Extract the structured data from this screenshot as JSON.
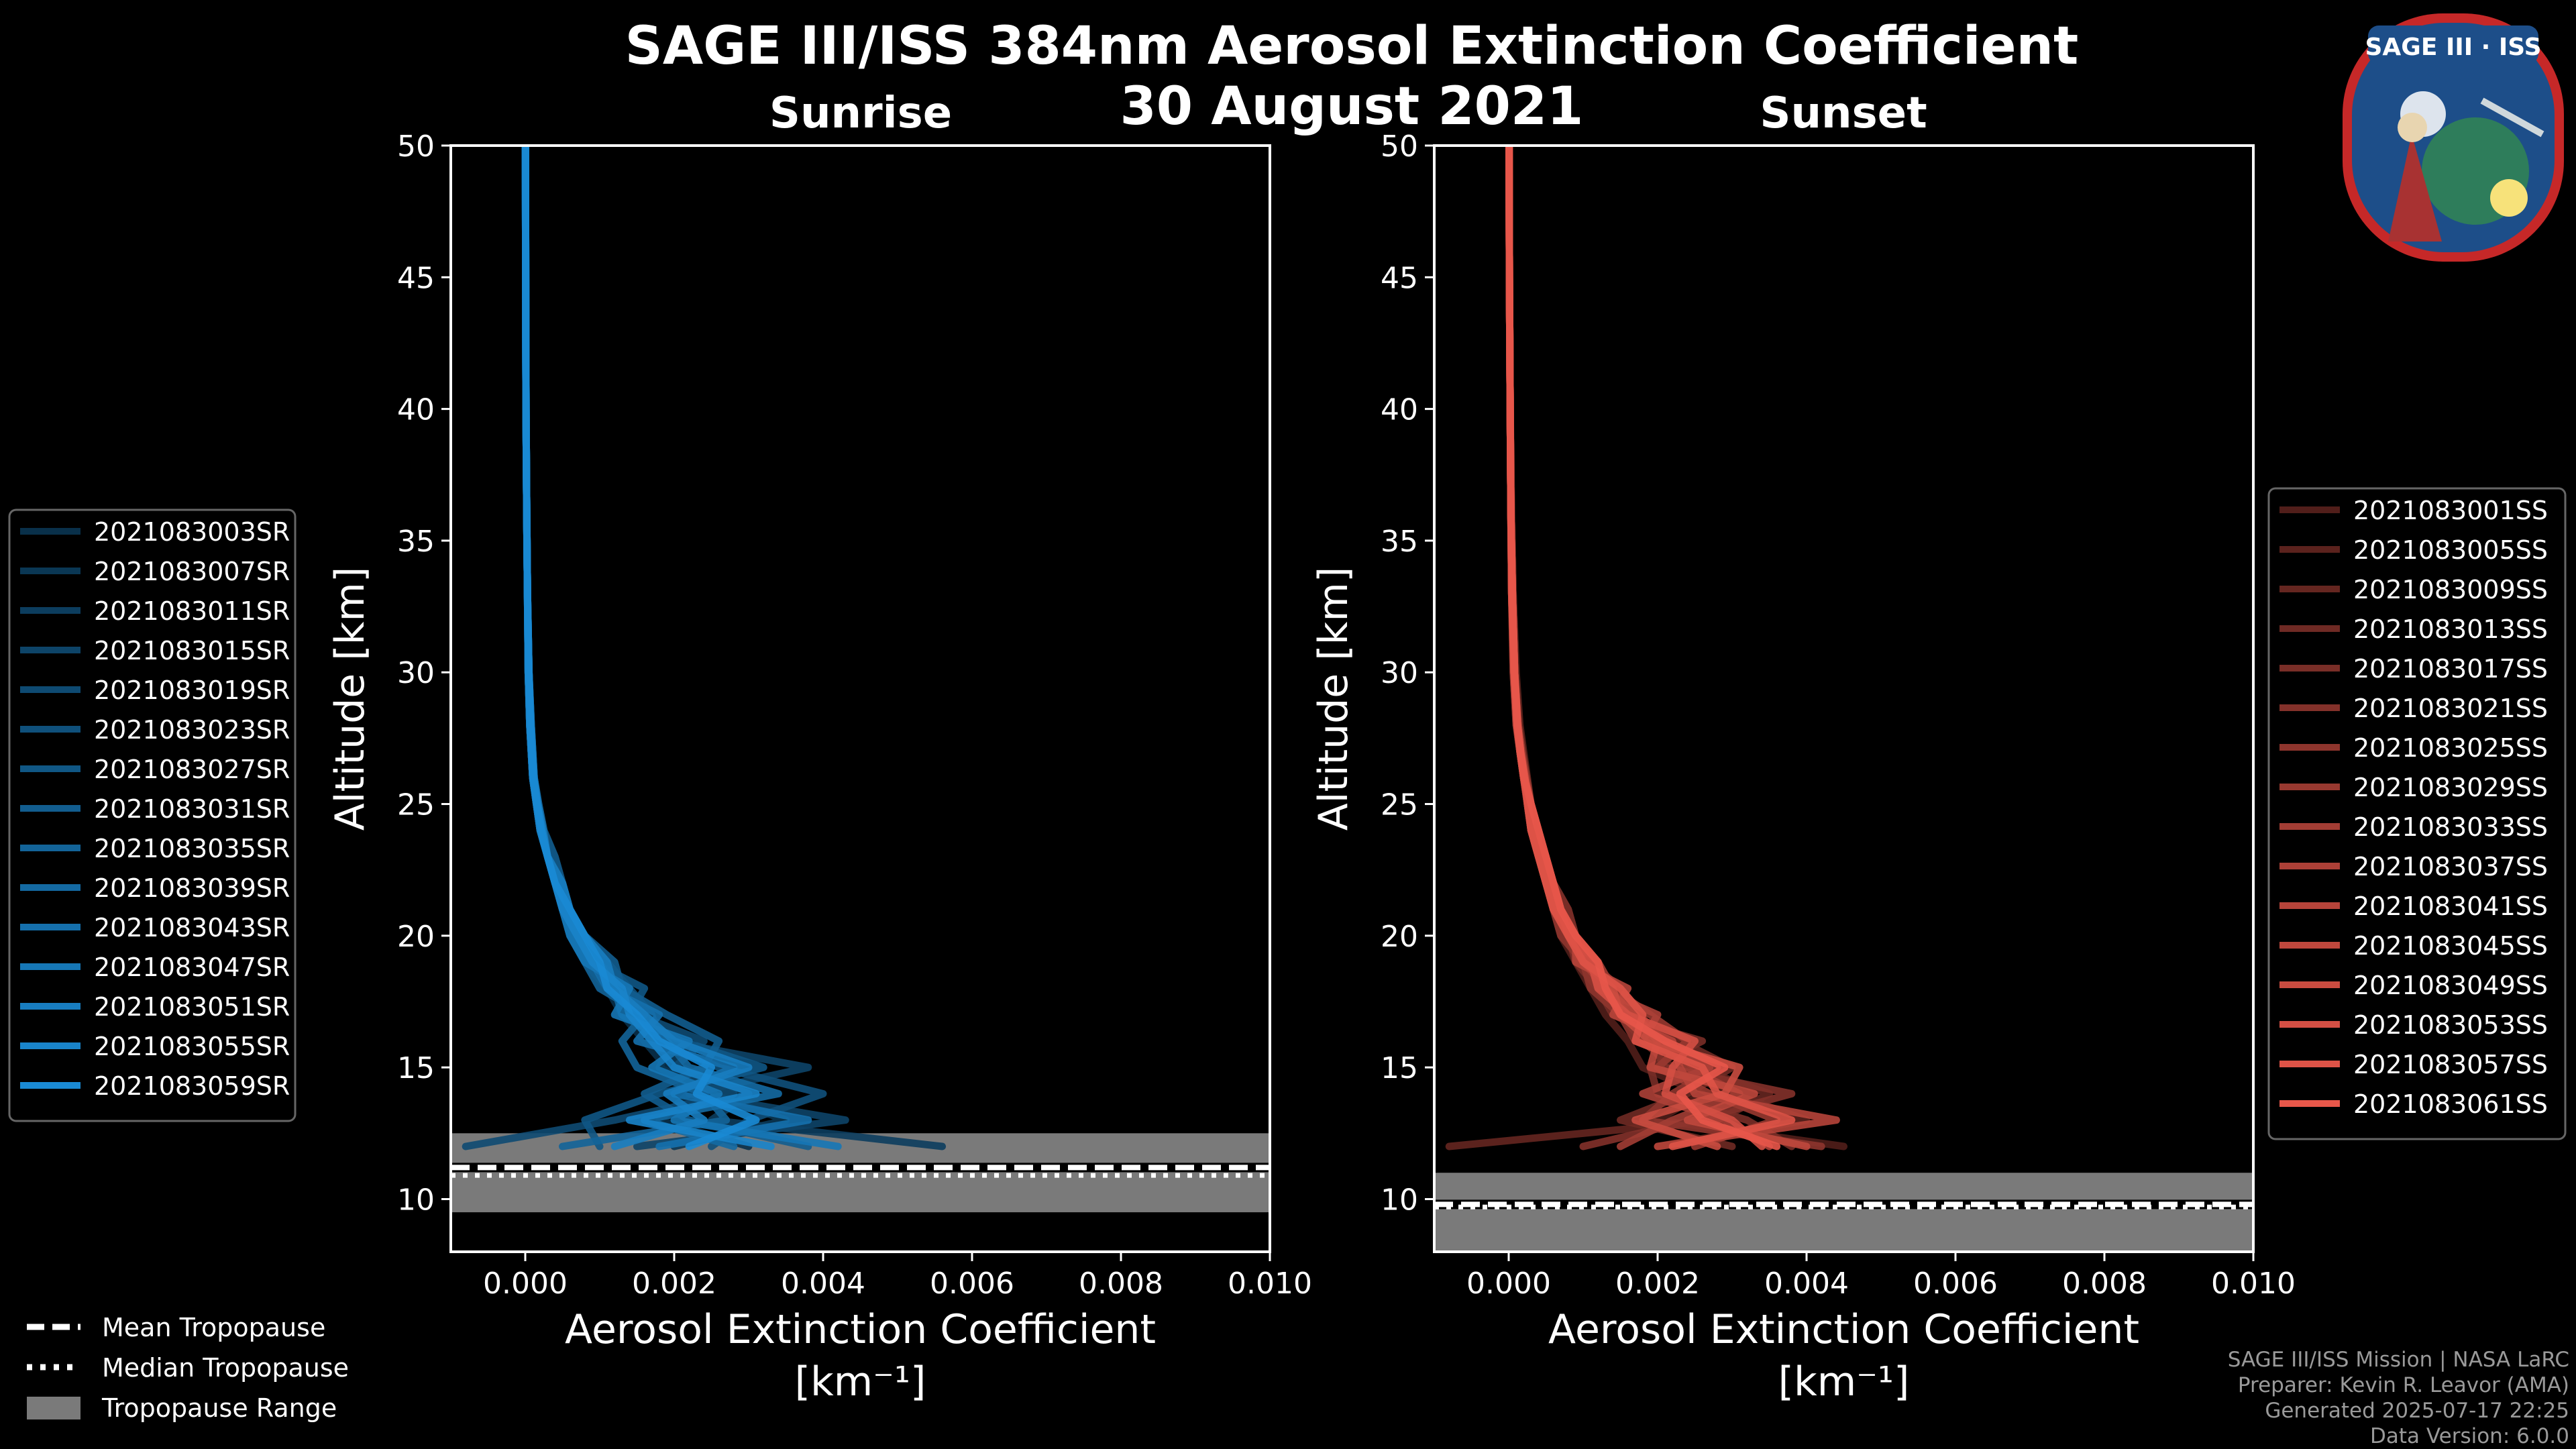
{
  "figure": {
    "title": "SAGE III/ISS 384nm Aerosol Extinction Coefficient",
    "date": "30 August 2021",
    "logo_text": "SAGE III · ISS",
    "footer": [
      "SAGE III/ISS Mission | NASA LaRC",
      "Preparer: Kevin R. Leavor (AMA)",
      "Generated 2025-07-17 22:25",
      "Data Version: 6.0.0"
    ],
    "bottom_legend": [
      {
        "label": "Mean Tropopause",
        "style": "dashed"
      },
      {
        "label": "Median Tropopause",
        "style": "dotted"
      },
      {
        "label": "Tropopause Range",
        "style": "patch"
      }
    ],
    "colors": {
      "sunrise": "#1a8ad4",
      "sunset": "#e8574a",
      "tropopause_fill": "#7a7a7a",
      "background": "#000000"
    }
  },
  "chart_data": [
    {
      "type": "line",
      "title": "Sunrise",
      "xlabel": "Aerosol Extinction Coefficient",
      "xlabel_units": "[km⁻¹]",
      "ylabel": "Altitude [km]",
      "xlim": [
        -0.001,
        0.01
      ],
      "ylim": [
        8,
        50
      ],
      "xticks": [
        "0.000",
        "0.002",
        "0.004",
        "0.006",
        "0.008",
        "0.010"
      ],
      "xtick_values": [
        0,
        0.002,
        0.004,
        0.006,
        0.008,
        0.01
      ],
      "yticks": [
        10,
        15,
        20,
        25,
        30,
        35,
        40,
        45,
        50
      ],
      "tropopause": {
        "mean": 11.2,
        "median": 10.9,
        "range": [
          9.5,
          12.5
        ]
      },
      "altitudes": [
        12,
        13,
        14,
        15,
        16,
        17,
        18,
        19,
        20,
        21,
        22,
        23,
        24,
        25,
        26,
        28,
        30,
        33,
        36,
        40,
        45,
        50
      ],
      "series": [
        {
          "name": "2021083003SR",
          "values": [
            0.003,
            0.0018,
            0.0022,
            0.0019,
            0.0016,
            0.0013,
            0.0011,
            0.0008,
            0.0006,
            0.0005,
            0.0004,
            0.0003,
            0.0002,
            0.00015,
            0.0001,
            6e-05,
            4e-05,
            3e-05,
            2e-05,
            1e-05,
            5e-06,
            3e-06
          ]
        },
        {
          "name": "2021083007SR",
          "values": [
            0.002,
            0.0035,
            0.0025,
            0.0018,
            0.002,
            0.0014,
            0.0012,
            0.0009,
            0.0007,
            0.0005,
            0.0004,
            0.0003,
            0.00022,
            0.00016,
            0.00011,
            7e-05,
            5e-05,
            3e-05,
            2e-05,
            1e-05,
            5e-06,
            3e-06
          ]
        },
        {
          "name": "2021083011SR",
          "values": [
            0.0056,
            0.0025,
            0.003,
            0.0021,
            0.0017,
            0.0015,
            0.0011,
            0.0009,
            0.0006,
            0.0005,
            0.0004,
            0.0003,
            0.0002,
            0.00015,
            0.0001,
            6e-05,
            4e-05,
            3e-05,
            2e-05,
            1e-05,
            5e-06,
            3e-06
          ]
        },
        {
          "name": "2021083015SR",
          "values": [
            0.0015,
            0.0043,
            0.0022,
            0.0038,
            0.0019,
            0.0016,
            0.0013,
            0.001,
            0.0007,
            0.0006,
            0.0004,
            0.0003,
            0.00022,
            0.00016,
            0.00011,
            7e-05,
            5e-05,
            3e-05,
            2e-05,
            1e-05,
            5e-06,
            3e-06
          ]
        },
        {
          "name": "2021083019SR",
          "values": [
            -0.0008,
            0.0012,
            0.0028,
            0.002,
            0.0024,
            0.0015,
            0.0012,
            0.0009,
            0.0007,
            0.0005,
            0.0004,
            0.0003,
            0.0002,
            0.00015,
            0.0001,
            6e-05,
            4e-05,
            3e-05,
            2e-05,
            1e-05,
            5e-06,
            3e-06
          ]
        },
        {
          "name": "2021083023SR",
          "values": [
            0.0025,
            0.003,
            0.004,
            0.0026,
            0.0018,
            0.0017,
            0.0014,
            0.0011,
            0.0008,
            0.0006,
            0.0005,
            0.0003,
            0.00025,
            0.00018,
            0.00012,
            8e-05,
            5e-05,
            3e-05,
            2e-05,
            1e-05,
            5e-06,
            3e-06
          ]
        },
        {
          "name": "2021083027SR",
          "values": [
            0.001,
            0.0008,
            0.0018,
            0.0032,
            0.0021,
            0.0014,
            0.0016,
            0.0009,
            0.0007,
            0.0005,
            0.0004,
            0.0003,
            0.0002,
            0.00015,
            0.0001,
            6e-05,
            4e-05,
            3e-05,
            2e-05,
            1e-05,
            5e-06,
            3e-06
          ]
        },
        {
          "name": "2021083031SR",
          "values": [
            0.0038,
            0.0022,
            0.0016,
            0.0024,
            0.0026,
            0.0019,
            0.0013,
            0.0012,
            0.0008,
            0.0006,
            0.0005,
            0.0004,
            0.00025,
            0.00018,
            0.00012,
            8e-05,
            5e-05,
            3e-05,
            2e-05,
            1e-05,
            5e-06,
            3e-06
          ]
        },
        {
          "name": "2021083035SR",
          "values": [
            0.0005,
            0.0027,
            0.0024,
            0.0015,
            0.0013,
            0.0016,
            0.001,
            0.0008,
            0.0006,
            0.0005,
            0.0004,
            0.0003,
            0.0002,
            0.00015,
            0.0001,
            6e-05,
            4e-05,
            3e-05,
            2e-05,
            1e-05,
            5e-06,
            3e-06
          ]
        },
        {
          "name": "2021083039SR",
          "values": [
            0.0028,
            0.0016,
            0.0034,
            0.0022,
            0.0019,
            0.0013,
            0.0012,
            0.001,
            0.0007,
            0.0005,
            0.0004,
            0.0003,
            0.0002,
            0.00015,
            0.0001,
            6e-05,
            4e-05,
            3e-05,
            2e-05,
            1e-05,
            5e-06,
            3e-06
          ]
        },
        {
          "name": "2021083043SR",
          "values": [
            0.0018,
            0.0038,
            0.002,
            0.0028,
            0.0015,
            0.0018,
            0.0011,
            0.0009,
            0.0007,
            0.0006,
            0.0004,
            0.0003,
            0.00022,
            0.00016,
            0.00011,
            7e-05,
            5e-05,
            3e-05,
            2e-05,
            1e-05,
            5e-06,
            3e-06
          ]
        },
        {
          "name": "2021083047SR",
          "values": [
            0.0042,
            0.002,
            0.0026,
            0.0017,
            0.0022,
            0.0012,
            0.0014,
            0.0008,
            0.0006,
            0.0005,
            0.0004,
            0.0003,
            0.0002,
            0.00015,
            0.0001,
            6e-05,
            4e-05,
            3e-05,
            2e-05,
            1e-05,
            5e-06,
            3e-06
          ]
        },
        {
          "name": "2021083051SR",
          "values": [
            0.0012,
            0.0024,
            0.0019,
            0.003,
            0.002,
            0.0016,
            0.0012,
            0.0011,
            0.0008,
            0.0006,
            0.0005,
            0.0003,
            0.00024,
            0.00017,
            0.00012,
            8e-05,
            5e-05,
            3e-05,
            2e-05,
            1e-05,
            5e-06,
            3e-06
          ]
        },
        {
          "name": "2021083055SR",
          "values": [
            0.0033,
            0.0014,
            0.0031,
            0.002,
            0.0017,
            0.0014,
            0.0013,
            0.0009,
            0.0007,
            0.0005,
            0.0004,
            0.0003,
            0.0002,
            0.00015,
            0.0001,
            6e-05,
            4e-05,
            3e-05,
            2e-05,
            1e-05,
            5e-06,
            3e-06
          ]
        },
        {
          "name": "2021083059SR",
          "values": [
            0.0022,
            0.0031,
            0.0023,
            0.0025,
            0.0018,
            0.0015,
            0.0011,
            0.001,
            0.0008,
            0.0006,
            0.0004,
            0.0003,
            0.00022,
            0.00016,
            0.00011,
            7e-05,
            5e-05,
            3e-05,
            2e-05,
            1e-05,
            5e-06,
            3e-06
          ]
        }
      ]
    },
    {
      "type": "line",
      "title": "Sunset",
      "xlabel": "Aerosol Extinction Coefficient",
      "xlabel_units": "[km⁻¹]",
      "ylabel": "Altitude [km]",
      "xlim": [
        -0.001,
        0.01
      ],
      "ylim": [
        8,
        50
      ],
      "xticks": [
        "0.000",
        "0.002",
        "0.004",
        "0.006",
        "0.008",
        "0.010"
      ],
      "xtick_values": [
        0,
        0.002,
        0.004,
        0.006,
        0.008,
        0.01
      ],
      "yticks": [
        10,
        15,
        20,
        25,
        30,
        35,
        40,
        45,
        50
      ],
      "tropopause": {
        "mean": 9.8,
        "median": 9.7,
        "range": [
          8,
          11
        ]
      },
      "altitudes": [
        12,
        13,
        14,
        15,
        16,
        17,
        18,
        19,
        20,
        21,
        22,
        23,
        24,
        25,
        26,
        27,
        28,
        30,
        33,
        36,
        40,
        45,
        50
      ],
      "series": [
        {
          "name": "2021083001SS",
          "values": [
            0.0045,
            0.002,
            0.0026,
            0.0018,
            0.0016,
            0.0013,
            0.0011,
            0.0009,
            0.0007,
            0.0006,
            0.0005,
            0.0004,
            0.0003,
            0.00025,
            0.0002,
            0.00015,
            0.0001,
            6e-05,
            4e-05,
            3e-05,
            2e-05,
            1e-05,
            5e-06
          ]
        },
        {
          "name": "2021083005SS",
          "values": [
            0.002,
            0.004,
            0.003,
            0.0022,
            0.0018,
            0.0015,
            0.0013,
            0.001,
            0.0008,
            0.0007,
            0.0006,
            0.0005,
            0.0004,
            0.0003,
            0.00025,
            0.0002,
            0.00015,
            0.0001,
            6e-05,
            4e-05,
            2e-05,
            1e-05,
            5e-06
          ]
        },
        {
          "name": "2021083009SS",
          "values": [
            -0.0008,
            0.0028,
            0.0035,
            0.0025,
            0.002,
            0.0017,
            0.0012,
            0.0011,
            0.0009,
            0.0007,
            0.0006,
            0.0005,
            0.0004,
            0.0003,
            0.0002,
            0.00016,
            0.00012,
            8e-05,
            5e-05,
            3e-05,
            2e-05,
            1e-05,
            5e-06
          ]
        },
        {
          "name": "2021083013SS",
          "values": [
            0.003,
            0.0015,
            0.0024,
            0.003,
            0.0023,
            0.0016,
            0.0014,
            0.0012,
            0.0008,
            0.0007,
            0.0006,
            0.0004,
            0.0003,
            0.00028,
            0.0002,
            0.00016,
            0.00012,
            8e-05,
            5e-05,
            3e-05,
            2e-05,
            1e-05,
            5e-06
          ]
        },
        {
          "name": "2021083017SS",
          "values": [
            0.0038,
            0.0032,
            0.002,
            0.0019,
            0.0026,
            0.0014,
            0.0012,
            0.0009,
            0.0008,
            0.0006,
            0.0005,
            0.0004,
            0.0003,
            0.00025,
            0.0002,
            0.00015,
            0.00011,
            7e-05,
            4e-05,
            3e-05,
            2e-05,
            1e-05,
            5e-06
          ]
        },
        {
          "name": "2021083021SS",
          "values": [
            0.001,
            0.0025,
            0.0038,
            0.0021,
            0.0019,
            0.0018,
            0.0015,
            0.0011,
            0.0009,
            0.0008,
            0.0006,
            0.0005,
            0.0004,
            0.0003,
            0.00022,
            0.00017,
            0.00013,
            8e-05,
            5e-05,
            3e-05,
            2e-05,
            1e-05,
            5e-06
          ]
        },
        {
          "name": "2021083025SS",
          "values": [
            0.0042,
            0.0018,
            0.0022,
            0.0028,
            0.0017,
            0.0015,
            0.0011,
            0.001,
            0.0007,
            0.0006,
            0.0005,
            0.0004,
            0.0003,
            0.00025,
            0.0002,
            0.00015,
            0.0001,
            6e-05,
            4e-05,
            3e-05,
            2e-05,
            1e-05,
            5e-06
          ]
        },
        {
          "name": "2021083029SS",
          "values": [
            0.0025,
            0.0036,
            0.0027,
            0.002,
            0.0024,
            0.0019,
            0.0014,
            0.0012,
            0.0009,
            0.0007,
            0.0006,
            0.0005,
            0.0004,
            0.0003,
            0.00024,
            0.00018,
            0.00013,
            8e-05,
            5e-05,
            3e-05,
            2e-05,
            1e-05,
            5e-06
          ]
        },
        {
          "name": "2021083033SS",
          "values": [
            0.0015,
            0.0022,
            0.0031,
            0.0024,
            0.0021,
            0.0016,
            0.0013,
            0.001,
            0.0008,
            0.0007,
            0.0005,
            0.0004,
            0.0003,
            0.00026,
            0.0002,
            0.00015,
            0.00011,
            7e-05,
            4e-05,
            3e-05,
            2e-05,
            1e-05,
            5e-06
          ]
        },
        {
          "name": "2021083037SS",
          "values": [
            0.0035,
            0.0029,
            0.0018,
            0.0027,
            0.0018,
            0.002,
            0.0012,
            0.0011,
            0.0008,
            0.0006,
            0.0006,
            0.0004,
            0.0003,
            0.00025,
            0.0002,
            0.00015,
            0.00012,
            7e-05,
            5e-05,
            3e-05,
            2e-05,
            1e-05,
            5e-06
          ]
        },
        {
          "name": "2021083041SS",
          "values": [
            0.002,
            0.0044,
            0.0025,
            0.0023,
            0.0022,
            0.0014,
            0.0016,
            0.0009,
            0.0009,
            0.0007,
            0.0005,
            0.0005,
            0.0004,
            0.0003,
            0.00022,
            0.00016,
            0.00012,
            8e-05,
            5e-05,
            3e-05,
            2e-05,
            1e-05,
            5e-06
          ]
        },
        {
          "name": "2021083045SS",
          "values": [
            0.004,
            0.0024,
            0.0033,
            0.0019,
            0.002,
            0.0017,
            0.0013,
            0.0012,
            0.0008,
            0.0007,
            0.0006,
            0.0004,
            0.0003,
            0.00026,
            0.0002,
            0.00016,
            0.00011,
            7e-05,
            4e-05,
            3e-05,
            2e-05,
            1e-05,
            5e-06
          ]
        },
        {
          "name": "2021083049SS",
          "values": [
            0.0028,
            0.0017,
            0.0029,
            0.0031,
            0.0019,
            0.0015,
            0.0014,
            0.001,
            0.0009,
            0.0006,
            0.0005,
            0.0004,
            0.0004,
            0.0003,
            0.0002,
            0.00015,
            0.00011,
            7e-05,
            5e-05,
            3e-05,
            2e-05,
            1e-05,
            5e-06
          ]
        },
        {
          "name": "2021083053SS",
          "values": [
            0.0034,
            0.003,
            0.0021,
            0.0022,
            0.0025,
            0.0016,
            0.0012,
            0.0011,
            0.0008,
            0.0007,
            0.0006,
            0.0005,
            0.0003,
            0.00025,
            0.00022,
            0.00016,
            0.00012,
            8e-05,
            5e-05,
            3e-05,
            2e-05,
            1e-05,
            5e-06
          ]
        },
        {
          "name": "2021083057SS",
          "values": [
            0.0022,
            0.0038,
            0.0028,
            0.0026,
            0.0017,
            0.0018,
            0.0015,
            0.001,
            0.0008,
            0.0006,
            0.0005,
            0.0004,
            0.0003,
            0.00026,
            0.0002,
            0.00015,
            0.00011,
            7e-05,
            4e-05,
            3e-05,
            2e-05,
            1e-05,
            5e-06
          ]
        },
        {
          "name": "2021083061SS",
          "values": [
            0.0036,
            0.0026,
            0.0023,
            0.0029,
            0.0021,
            0.0015,
            0.0013,
            0.0012,
            0.0009,
            0.0007,
            0.0006,
            0.0005,
            0.0004,
            0.0003,
            0.00021,
            0.00016,
            0.00012,
            8e-05,
            5e-05,
            3e-05,
            2e-05,
            1e-05,
            5e-06
          ]
        }
      ]
    }
  ]
}
